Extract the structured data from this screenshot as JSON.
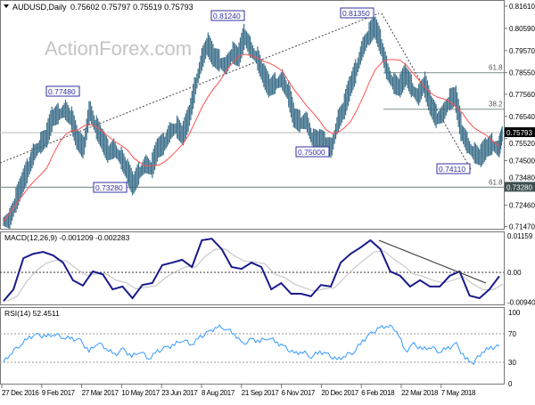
{
  "chart_data": [
    {
      "type": "ohlc",
      "title": "AUDUSD,Daily",
      "ohlc_readout": "0.75602 0.75797 0.75519 0.75793",
      "watermark": "ActionForex.com",
      "ylim": [
        0.7125,
        0.8185
      ],
      "y_ticks": [
        "0.81610",
        "0.80590",
        "0.79570",
        "0.78550",
        "0.77560",
        "0.76540",
        "0.75520",
        "0.74500",
        "0.73480",
        "0.72460",
        "0.71470"
      ],
      "current_price": "0.75793",
      "support_price_label": "0.73280",
      "colors": {
        "bars": "#3d6f8a",
        "ma": "#ff5050",
        "current": "#000000",
        "label_box": "#3030a0"
      },
      "close": [
        0.717,
        0.725,
        0.733,
        0.74,
        0.748,
        0.752,
        0.755,
        0.764,
        0.766,
        0.768,
        0.764,
        0.754,
        0.75,
        0.768,
        0.76,
        0.754,
        0.748,
        0.75,
        0.746,
        0.74,
        0.733,
        0.739,
        0.743,
        0.741,
        0.75,
        0.752,
        0.758,
        0.76,
        0.756,
        0.764,
        0.778,
        0.79,
        0.798,
        0.792,
        0.79,
        0.788,
        0.794,
        0.792,
        0.802,
        0.796,
        0.792,
        0.784,
        0.778,
        0.78,
        0.782,
        0.776,
        0.764,
        0.762,
        0.763,
        0.754,
        0.754,
        0.752,
        0.75,
        0.762,
        0.768,
        0.778,
        0.786,
        0.796,
        0.802,
        0.806,
        0.798,
        0.786,
        0.78,
        0.778,
        0.784,
        0.778,
        0.774,
        0.78,
        0.77,
        0.764,
        0.766,
        0.772,
        0.774,
        0.758,
        0.752,
        0.748,
        0.746,
        0.75,
        0.752,
        0.75,
        0.7579
      ],
      "annotations": [
        {
          "text": "0.77480",
          "price": 0.7748
        },
        {
          "text": "0.73280",
          "price": 0.7328
        },
        {
          "text": "0.81240",
          "price": 0.8124
        },
        {
          "text": "0.75000",
          "price": 0.75
        },
        {
          "text": "0.81350",
          "price": 0.8135
        },
        {
          "text": "0.74110",
          "price": 0.7411
        }
      ],
      "fib_levels": [
        {
          "label": "61.8",
          "price": 0.7855
        },
        {
          "label": "38.2",
          "price": 0.7687
        },
        {
          "label": "61.8",
          "price": 0.7328
        }
      ]
    },
    {
      "type": "line",
      "title": "MACD(12,26,9) -0.001209 -0.002283",
      "ylim": [
        -0.0105,
        0.0125
      ],
      "y_ticks": [
        "0.01159",
        "0.00",
        "-0.009406"
      ],
      "colors": {
        "macd": "#1a1a8c",
        "signal": "#c0c0c0"
      },
      "macd": [
        -0.0091,
        -0.0054,
        0.0045,
        0.0059,
        0.0065,
        0.0054,
        0.0031,
        -0.0025,
        -0.0042,
        0.0003,
        -0.0006,
        -0.0054,
        -0.0045,
        -0.0082,
        -0.004,
        -0.0034,
        0.0023,
        0.0031,
        0.004,
        0.0017,
        0.0102,
        0.0107,
        0.0074,
        0.0017,
        0.0011,
        0.0031,
        0.0017,
        -0.0054,
        -0.0034,
        -0.0068,
        -0.0068,
        -0.0076,
        -0.004,
        -0.0045,
        0.0031,
        0.0059,
        0.0079,
        0.0102,
        0.0074,
        0.0003,
        -0.0011,
        -0.0045,
        -0.0025,
        -0.0045,
        -0.0045,
        -0.0011,
        0.0003,
        -0.0074,
        -0.0082,
        -0.0054,
        -0.0012
      ]
    },
    {
      "type": "line",
      "title": "RSI(14) 52.4511",
      "ylim": [
        0,
        100
      ],
      "y_ticks": [
        "100",
        "70",
        "30",
        "0"
      ],
      "colors": {
        "rsi": "#3399ff"
      },
      "rsi": [
        30,
        45,
        55,
        65,
        68,
        66,
        70,
        65,
        63,
        60,
        45,
        58,
        50,
        40,
        48,
        38,
        46,
        35,
        45,
        50,
        55,
        62,
        55,
        65,
        72,
        80,
        78,
        70,
        55,
        62,
        60,
        65,
        58,
        50,
        42,
        45,
        38,
        45,
        40,
        33,
        40,
        45,
        60,
        70,
        78,
        82,
        75,
        45,
        55,
        48,
        52,
        45,
        50,
        55,
        35,
        30,
        45,
        50,
        52.45
      ]
    }
  ],
  "x_ticks": [
    "27 Dec 2016",
    "9 Feb 2017",
    "27 Mar 2017",
    "10 May 2017",
    "23 Jun 2017",
    "8 Aug 2017",
    "21 Sep 2017",
    "6 Nov 2017",
    "20 Dec 2017",
    "6 Feb 2018",
    "22 Mar 2018",
    "7 May 2018"
  ]
}
